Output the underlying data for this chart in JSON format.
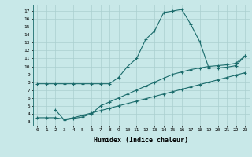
{
  "xlabel": "Humidex (Indice chaleur)",
  "ylabel": "",
  "background_color": "#c8e8e8",
  "line_color": "#1a6b6b",
  "xlim": [
    -0.5,
    23.5
  ],
  "ylim": [
    2.5,
    17.8
  ],
  "xticks": [
    0,
    1,
    2,
    3,
    4,
    5,
    6,
    7,
    8,
    9,
    10,
    11,
    12,
    13,
    14,
    15,
    16,
    17,
    18,
    19,
    20,
    21,
    22,
    23
  ],
  "yticks": [
    3,
    4,
    5,
    6,
    7,
    8,
    9,
    10,
    11,
    12,
    13,
    14,
    15,
    16,
    17
  ],
  "line1_x": [
    0,
    1,
    2,
    3,
    4,
    5,
    6,
    7,
    8,
    9,
    10,
    11,
    12,
    13,
    14,
    15,
    16,
    17,
    18,
    19,
    20,
    21,
    22,
    23
  ],
  "line1_y": [
    7.8,
    7.8,
    7.8,
    7.8,
    7.8,
    7.8,
    7.8,
    7.8,
    7.8,
    8.6,
    10.0,
    11.0,
    13.4,
    14.5,
    16.8,
    17.0,
    17.2,
    15.3,
    13.1,
    9.8,
    9.8,
    9.9,
    10.1,
    11.3
  ],
  "line2_x": [
    2,
    3,
    4,
    5,
    6,
    7,
    8,
    9,
    10,
    11,
    12,
    13,
    14,
    15,
    16,
    17,
    18,
    19,
    20,
    21,
    22,
    23
  ],
  "line2_y": [
    4.5,
    3.2,
    3.4,
    3.6,
    4.0,
    5.0,
    5.5,
    6.0,
    6.5,
    7.0,
    7.5,
    8.0,
    8.5,
    9.0,
    9.3,
    9.6,
    9.8,
    10.0,
    10.1,
    10.2,
    10.4,
    11.3
  ],
  "line3_x": [
    0,
    1,
    2,
    3,
    4,
    5,
    6,
    7,
    8,
    9,
    10,
    11,
    12,
    13,
    14,
    15,
    16,
    17,
    18,
    19,
    20,
    21,
    22,
    23
  ],
  "line3_y": [
    3.5,
    3.5,
    3.5,
    3.3,
    3.5,
    3.8,
    4.1,
    4.4,
    4.7,
    5.0,
    5.3,
    5.6,
    5.9,
    6.2,
    6.5,
    6.8,
    7.1,
    7.4,
    7.7,
    8.0,
    8.3,
    8.6,
    8.9,
    9.2
  ],
  "grid_color": "#aacfcf",
  "marker": "+"
}
